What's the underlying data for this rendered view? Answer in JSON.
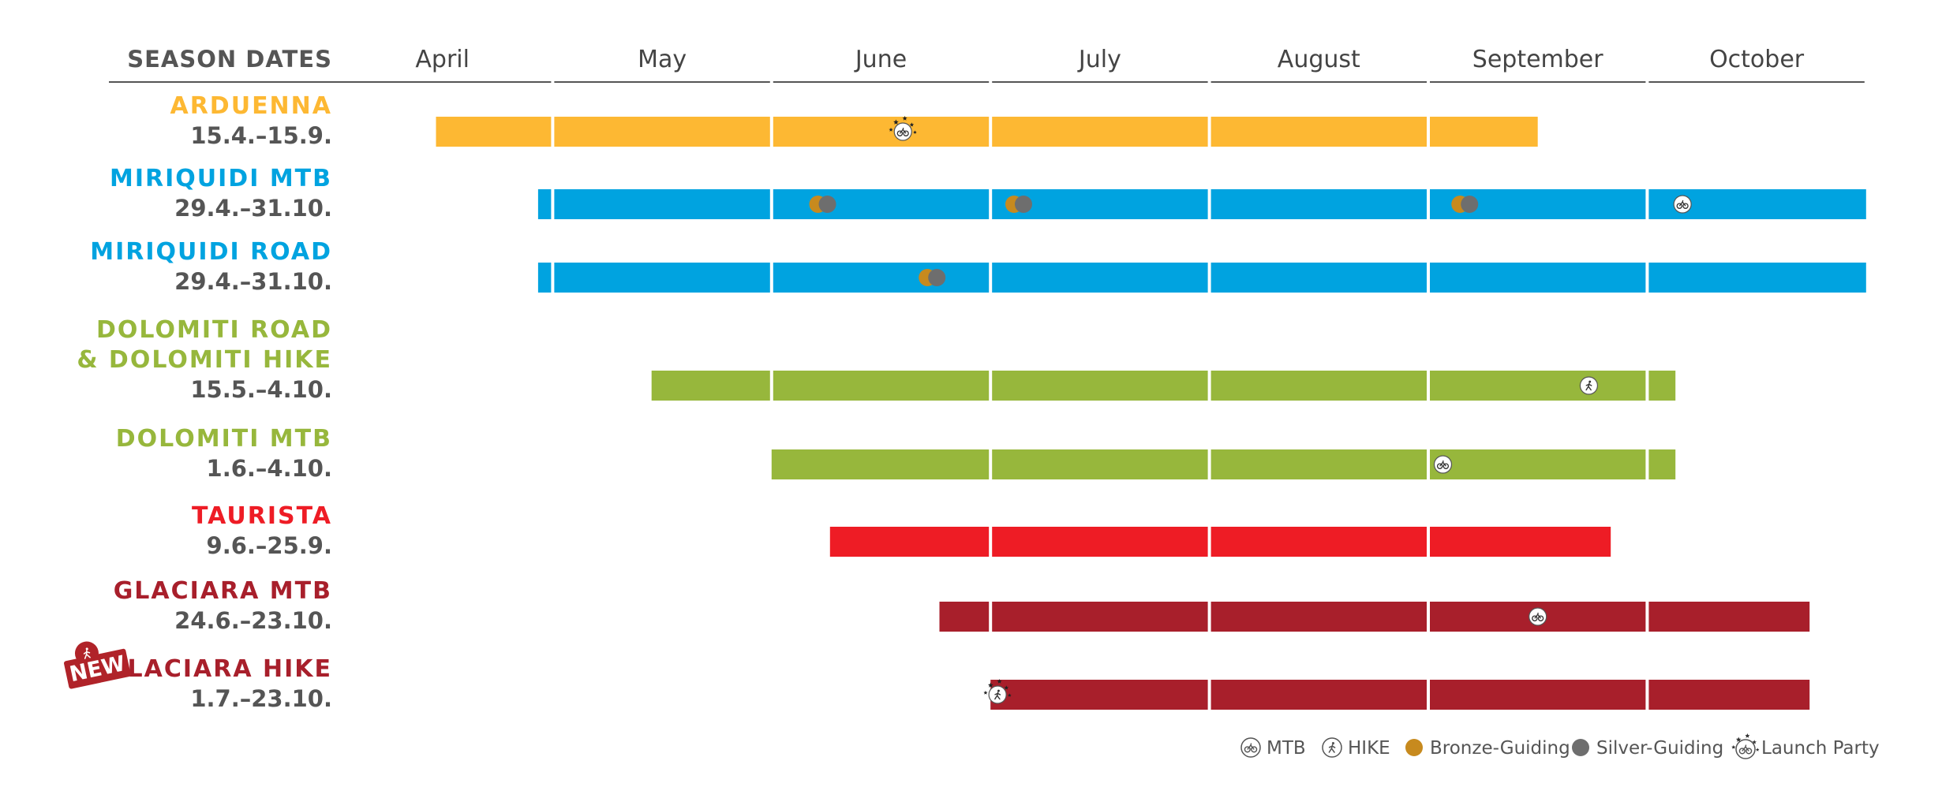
{
  "chart_data": {
    "type": "gantt",
    "header": "SEASON DATES",
    "months": [
      "April",
      "May",
      "June",
      "July",
      "August",
      "September",
      "October"
    ],
    "colors": {
      "arduenna": "#FDB833",
      "miriquidi": "#00A3E0",
      "dolomiti": "#97B73C",
      "taurista": "#EE1C25",
      "glaciara": "#A81F2B",
      "bronze": "#C78A1E",
      "silver": "#6E6E6E",
      "rule": "#555555",
      "new_badge": "#B02329"
    },
    "rows": [
      {
        "name_lines": [
          "ARDUENNA"
        ],
        "dates": "15.4.–15.9.",
        "color_key": "arduenna",
        "start": [
          4,
          15
        ],
        "end": [
          9,
          15
        ],
        "markers": [
          {
            "type": "launch",
            "date": [
              6,
              19
            ]
          }
        ]
      },
      {
        "name_lines": [
          "MIRIQUIDI MTB"
        ],
        "dates": "29.4.–31.10.",
        "color_key": "miriquidi",
        "start": [
          4,
          29
        ],
        "end": [
          10,
          31
        ],
        "markers": [
          {
            "type": "guiding",
            "date": [
              6,
              8
            ]
          },
          {
            "type": "guiding",
            "date": [
              7,
              5
            ]
          },
          {
            "type": "guiding",
            "date": [
              9,
              6
            ]
          },
          {
            "type": "mtb",
            "date": [
              10,
              6
            ]
          }
        ]
      },
      {
        "name_lines": [
          "MIRIQUIDI ROAD"
        ],
        "dates": "29.4.–31.10.",
        "color_key": "miriquidi",
        "start": [
          4,
          29
        ],
        "end": [
          10,
          31
        ],
        "markers": [
          {
            "type": "guiding",
            "date": [
              6,
              23
            ]
          }
        ]
      },
      {
        "name_lines": [
          "DOLOMITI ROAD",
          "& DOLOMITI HIKE"
        ],
        "dates": "15.5.–4.10.",
        "color_key": "dolomiti",
        "start": [
          5,
          15
        ],
        "end": [
          10,
          4
        ],
        "markers": [
          {
            "type": "hike",
            "date": [
              9,
              23
            ]
          }
        ]
      },
      {
        "name_lines": [
          "DOLOMITI MTB"
        ],
        "dates": "1.6.–4.10.",
        "color_key": "dolomiti",
        "start": [
          6,
          1
        ],
        "end": [
          10,
          4
        ],
        "markers": [
          {
            "type": "mtb",
            "date": [
              9,
              3
            ]
          }
        ]
      },
      {
        "name_lines": [
          "TAURISTA"
        ],
        "dates": "9.6.–25.9.",
        "color_key": "taurista",
        "start": [
          6,
          9
        ],
        "end": [
          9,
          25
        ],
        "markers": []
      },
      {
        "name_lines": [
          "GLACIARA MTB"
        ],
        "dates": "24.6.–23.10.",
        "color_key": "glaciara",
        "start": [
          6,
          24
        ],
        "end": [
          10,
          23
        ],
        "markers": [
          {
            "type": "mtb",
            "date": [
              9,
              16
            ]
          }
        ]
      },
      {
        "name_lines": [
          "GLACIARA HIKE"
        ],
        "dates": "1.7.–23.10.",
        "color_key": "glaciara",
        "start": [
          7,
          1
        ],
        "end": [
          10,
          23
        ],
        "badge": "NEW",
        "markers": [
          {
            "type": "launch_hike",
            "date": [
              7,
              2
            ]
          }
        ]
      }
    ],
    "legend": [
      {
        "icon": "mtb-icon",
        "label": "MTB"
      },
      {
        "icon": "hike-icon",
        "label": "HIKE"
      },
      {
        "icon": "bronze-dot",
        "label": "Bronze-Guiding"
      },
      {
        "icon": "silver-dot",
        "label": "Silver-Guiding"
      },
      {
        "icon": "launch-party-icon",
        "label": "Launch Party"
      }
    ]
  }
}
